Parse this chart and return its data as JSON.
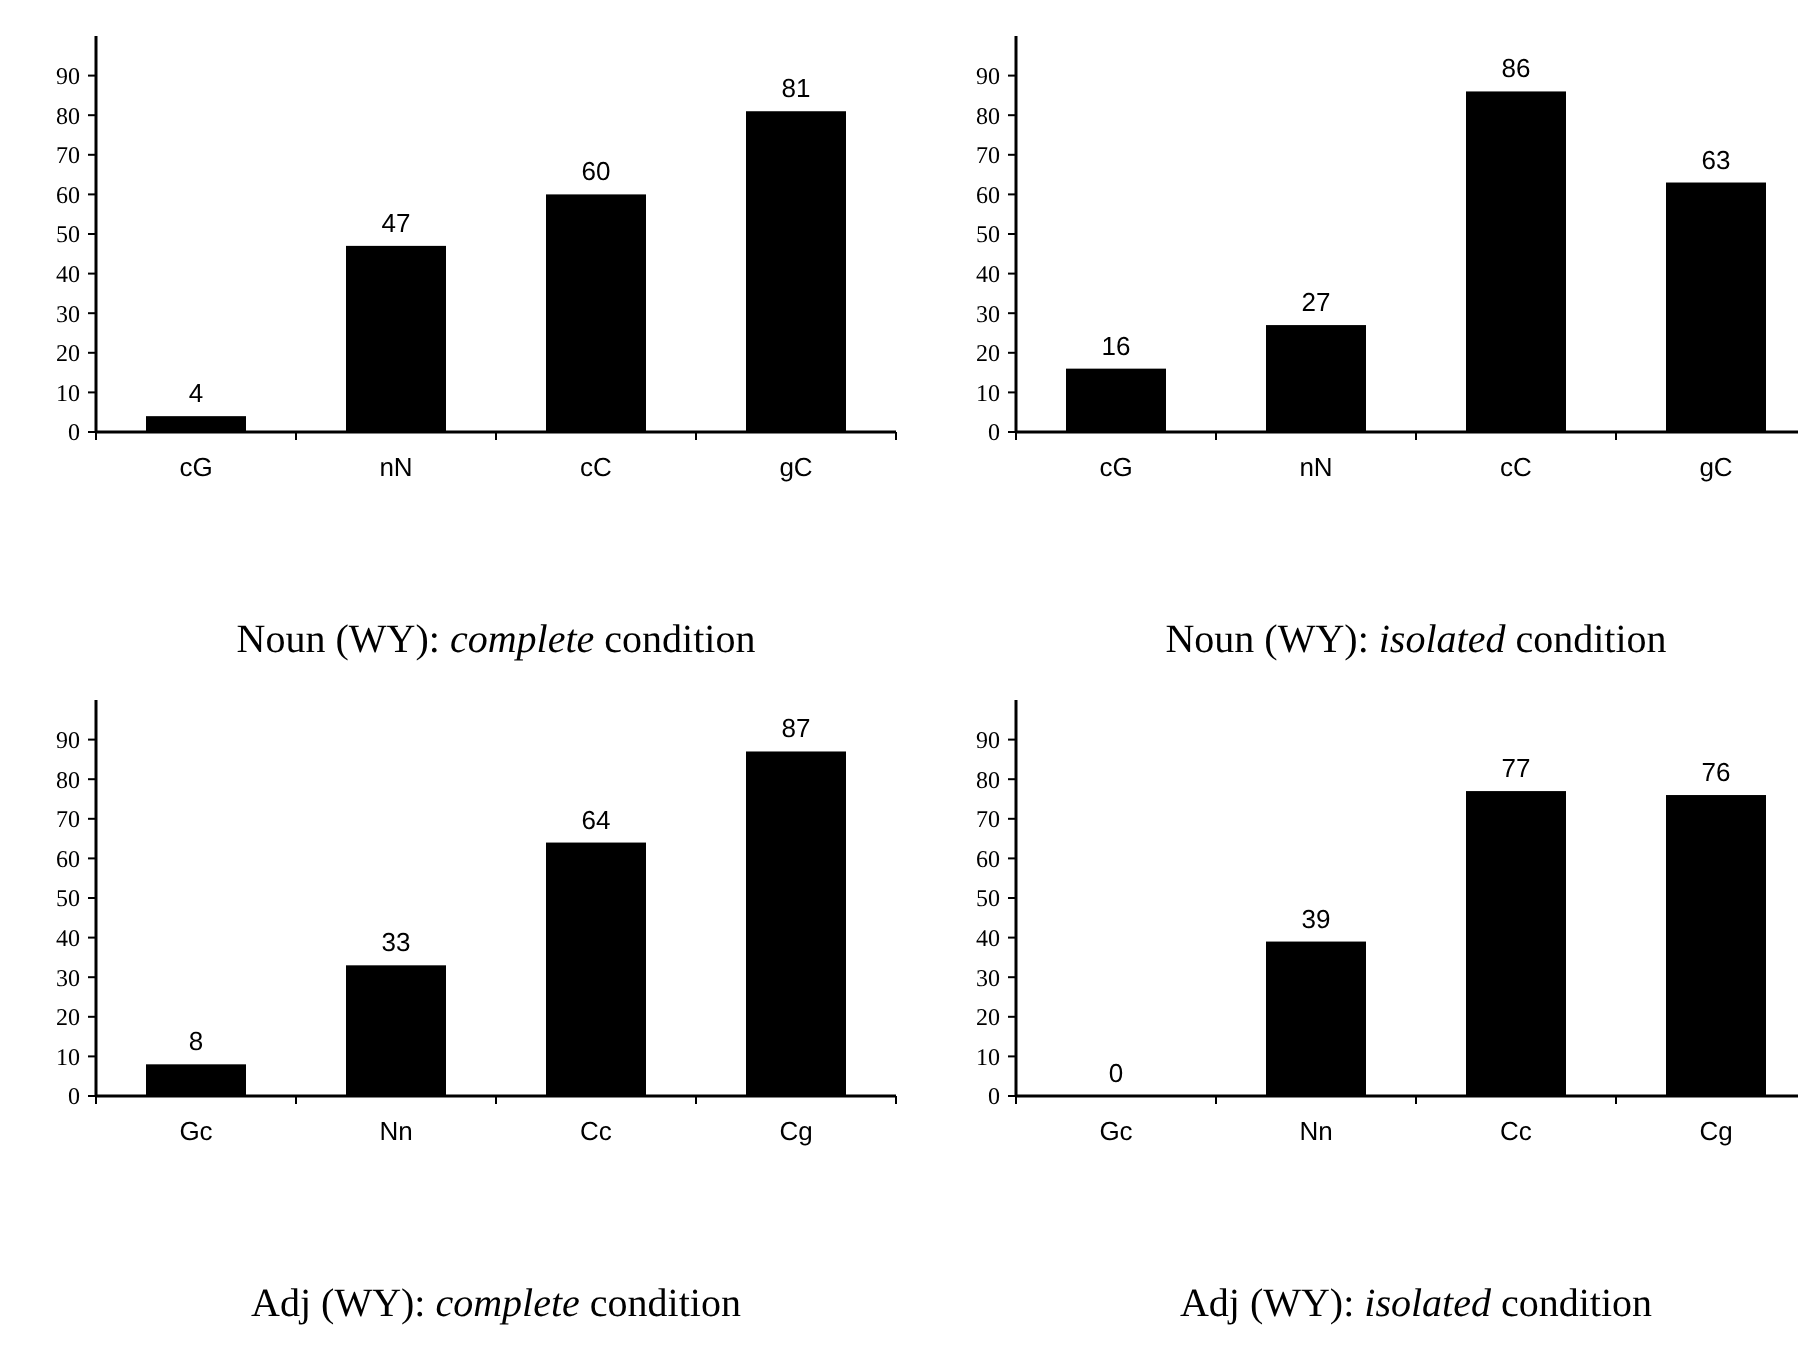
{
  "chart_data": [
    {
      "type": "bar",
      "title": "Noun (WY): complete condition",
      "categories": [
        "cG",
        "nN",
        "cC",
        "gC"
      ],
      "values": [
        4,
        47,
        60,
        81
      ],
      "color": "#000000",
      "ylim": [
        0,
        100
      ],
      "yticks": [
        0,
        10,
        20,
        30,
        40,
        50,
        60,
        70,
        80,
        90
      ],
      "data_labels": true
    },
    {
      "type": "bar",
      "title": "Noun (WY): isolated condition",
      "categories": [
        "cG",
        "nN",
        "cC",
        "gC"
      ],
      "values": [
        16,
        27,
        86,
        63
      ],
      "color": "#000000",
      "ylim": [
        0,
        100
      ],
      "yticks": [
        0,
        10,
        20,
        30,
        40,
        50,
        60,
        70,
        80,
        90
      ],
      "data_labels": true
    },
    {
      "type": "bar",
      "title": "Adj (WY): complete condition",
      "categories": [
        "Gc",
        "Nn",
        "Cc",
        "Cg"
      ],
      "values": [
        8,
        33,
        64,
        87
      ],
      "color": "#000000",
      "ylim": [
        0,
        100
      ],
      "yticks": [
        0,
        10,
        20,
        30,
        40,
        50,
        60,
        70,
        80,
        90
      ],
      "data_labels": true
    },
    {
      "type": "bar",
      "title": "Adj (WY): isolated condition",
      "categories": [
        "Gc",
        "Nn",
        "Cc",
        "Cg"
      ],
      "values": [
        0,
        39,
        77,
        76
      ],
      "color": "#000000",
      "ylim": [
        0,
        100
      ],
      "yticks": [
        0,
        10,
        20,
        30,
        40,
        50,
        60,
        70,
        80,
        90
      ],
      "data_labels": true
    }
  ]
}
